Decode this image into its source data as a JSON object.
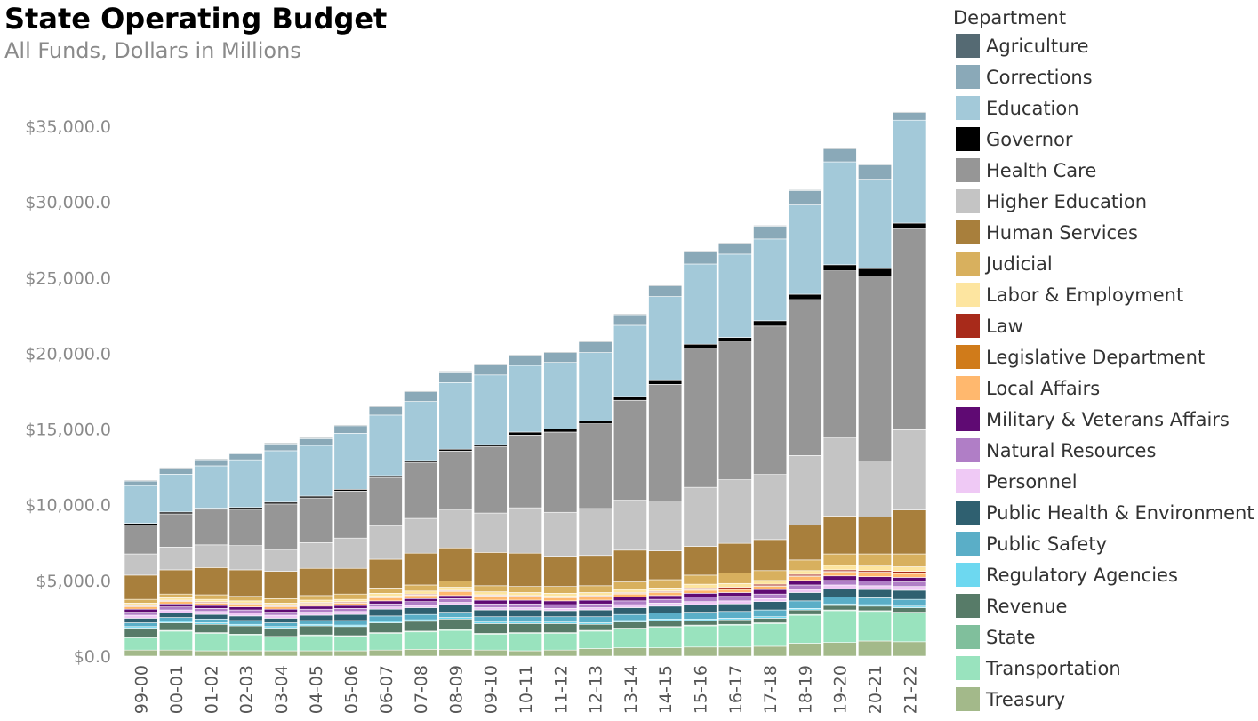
{
  "chart_data": {
    "type": "bar",
    "stacked": true,
    "title": "State Operating Budget",
    "subtitle": "All Funds, Dollars in Millions",
    "xlabel": "",
    "ylabel": "",
    "ylim": [
      0,
      36000
    ],
    "y_ticks": [
      0,
      5000,
      10000,
      15000,
      20000,
      25000,
      30000,
      35000
    ],
    "y_tick_labels": [
      "$0.0",
      "$5,000.0",
      "$10,000.0",
      "$15,000.0",
      "$20,000.0",
      "$25,000.0",
      "$30,000.0",
      "$35,000.0"
    ],
    "grid": false,
    "legend_title": "Department",
    "legend_position": "right",
    "categories": [
      "99-00",
      "00-01",
      "01-02",
      "02-03",
      "03-04",
      "04-05",
      "05-06",
      "06-07",
      "07-08",
      "08-09",
      "09-10",
      "10-11",
      "11-12",
      "12-13",
      "13-14",
      "14-15",
      "15-16",
      "16-17",
      "17-18",
      "18-19",
      "19-20",
      "20-21",
      "21-22"
    ],
    "series": [
      {
        "name": "Treasury",
        "color": "#a3b98a",
        "values": [
          400,
          400,
          350,
          350,
          350,
          350,
          350,
          400,
          450,
          450,
          400,
          350,
          400,
          500,
          550,
          550,
          600,
          600,
          650,
          850,
          900,
          1000,
          950
        ]
      },
      {
        "name": "Transportation",
        "color": "#99e3be",
        "values": [
          800,
          1250,
          1150,
          1050,
          900,
          1000,
          950,
          1100,
          1150,
          1250,
          1050,
          1150,
          1100,
          1150,
          1250,
          1350,
          1400,
          1450,
          1500,
          1850,
          2100,
          1950,
          1900
        ]
      },
      {
        "name": "State",
        "color": "#80bf9c",
        "values": [
          50,
          50,
          50,
          50,
          50,
          50,
          50,
          50,
          50,
          50,
          50,
          50,
          50,
          50,
          50,
          50,
          50,
          50,
          50,
          50,
          50,
          50,
          50
        ]
      },
      {
        "name": "Revenue",
        "color": "#577b68",
        "values": [
          600,
          500,
          550,
          550,
          550,
          600,
          600,
          650,
          650,
          700,
          650,
          600,
          600,
          400,
          400,
          400,
          300,
          300,
          300,
          300,
          300,
          300,
          300
        ]
      },
      {
        "name": "Regulatory Agencies",
        "color": "#6dd8f0",
        "values": [
          100,
          100,
          100,
          100,
          100,
          100,
          100,
          100,
          100,
          100,
          100,
          100,
          100,
          100,
          100,
          100,
          100,
          100,
          100,
          100,
          100,
          100,
          100
        ]
      },
      {
        "name": "Public Safety",
        "color": "#5aaec7",
        "values": [
          250,
          250,
          250,
          250,
          250,
          250,
          300,
          350,
          350,
          350,
          350,
          350,
          350,
          400,
          400,
          400,
          450,
          450,
          450,
          500,
          450,
          450,
          450
        ]
      },
      {
        "name": "Public Health & Environment",
        "color": "#2f6070",
        "values": [
          300,
          300,
          300,
          300,
          300,
          350,
          400,
          450,
          450,
          500,
          450,
          450,
          400,
          450,
          450,
          450,
          500,
          500,
          550,
          550,
          550,
          550,
          600
        ]
      },
      {
        "name": "Personnel",
        "color": "#efc9f5",
        "values": [
          200,
          200,
          200,
          200,
          200,
          200,
          200,
          150,
          150,
          150,
          150,
          150,
          150,
          150,
          200,
          200,
          200,
          200,
          200,
          200,
          250,
          250,
          250
        ]
      },
      {
        "name": "Natural Resources",
        "color": "#b07ec6",
        "values": [
          200,
          200,
          200,
          200,
          200,
          200,
          200,
          200,
          250,
          250,
          250,
          250,
          250,
          250,
          250,
          250,
          300,
          300,
          300,
          300,
          300,
          300,
          300
        ]
      },
      {
        "name": "Military & Veterans Affairs",
        "color": "#5f0a73",
        "values": [
          200,
          200,
          200,
          200,
          200,
          200,
          200,
          200,
          200,
          200,
          250,
          250,
          250,
          250,
          250,
          250,
          250,
          250,
          300,
          300,
          300,
          300,
          300
        ]
      },
      {
        "name": "Local Affairs",
        "color": "#ffb86e",
        "values": [
          150,
          150,
          150,
          150,
          150,
          150,
          150,
          200,
          200,
          250,
          250,
          200,
          200,
          200,
          200,
          200,
          200,
          200,
          200,
          250,
          250,
          250,
          250
        ]
      },
      {
        "name": "Legislative Department",
        "color": "#d07b1a",
        "values": [
          50,
          50,
          50,
          50,
          50,
          50,
          50,
          50,
          50,
          50,
          50,
          50,
          50,
          50,
          50,
          50,
          50,
          50,
          50,
          50,
          50,
          50,
          50
        ]
      },
      {
        "name": "Law",
        "color": "#a82a1a",
        "values": [
          50,
          50,
          50,
          50,
          50,
          50,
          50,
          50,
          50,
          50,
          50,
          50,
          50,
          50,
          50,
          50,
          100,
          100,
          100,
          100,
          100,
          100,
          100
        ]
      },
      {
        "name": "Labor & Employment",
        "color": "#fde5a0",
        "values": [
          150,
          150,
          150,
          150,
          150,
          150,
          150,
          200,
          200,
          200,
          200,
          200,
          200,
          200,
          200,
          200,
          250,
          250,
          250,
          250,
          300,
          300,
          300
        ]
      },
      {
        "name": "Judicial",
        "color": "#d8b05e",
        "values": [
          250,
          250,
          300,
          300,
          300,
          300,
          350,
          350,
          400,
          400,
          400,
          400,
          450,
          450,
          500,
          550,
          600,
          700,
          650,
          700,
          750,
          800,
          850
        ]
      },
      {
        "name": "Human Services",
        "color": "#a87f3c",
        "values": [
          1600,
          1600,
          1800,
          1750,
          1800,
          1800,
          1700,
          1900,
          2100,
          2200,
          2200,
          2200,
          2000,
          2000,
          2100,
          1900,
          1900,
          1950,
          2050,
          2300,
          2500,
          2450,
          2900
        ]
      },
      {
        "name": "Higher Education",
        "color": "#c4c4c4",
        "values": [
          1400,
          1500,
          1500,
          1600,
          1450,
          1700,
          2000,
          2200,
          2300,
          2500,
          2600,
          3000,
          2900,
          3100,
          3300,
          3300,
          3900,
          4200,
          4300,
          4600,
          5200,
          3700,
          5300
        ]
      },
      {
        "name": "Health Care",
        "color": "#969696",
        "values": [
          1900,
          2200,
          2300,
          2400,
          3000,
          2950,
          3100,
          3200,
          3700,
          3900,
          4400,
          4800,
          5300,
          5600,
          6600,
          7700,
          9200,
          9100,
          9800,
          10300,
          11000,
          12200,
          13300
        ]
      },
      {
        "name": "Governor",
        "color": "#000000",
        "values": [
          120,
          120,
          120,
          120,
          120,
          120,
          120,
          120,
          120,
          120,
          120,
          200,
          200,
          200,
          250,
          300,
          250,
          300,
          350,
          350,
          400,
          500,
          350
        ]
      },
      {
        "name": "Education",
        "color": "#a3c9d9",
        "values": [
          2500,
          2500,
          2800,
          3150,
          3400,
          3350,
          3700,
          4000,
          3900,
          4400,
          4600,
          4400,
          4400,
          4500,
          4700,
          5500,
          5300,
          5500,
          5400,
          5900,
          6800,
          5900,
          6800
        ]
      },
      {
        "name": "Corrections",
        "color": "#8aa9b8",
        "values": [
          300,
          400,
          400,
          400,
          450,
          450,
          500,
          550,
          650,
          700,
          700,
          650,
          650,
          700,
          700,
          700,
          800,
          700,
          850,
          950,
          850,
          950,
          500
        ]
      },
      {
        "name": "Agriculture",
        "color": "#556a73",
        "values": [
          50,
          50,
          50,
          50,
          50,
          50,
          50,
          50,
          50,
          50,
          50,
          50,
          50,
          50,
          50,
          50,
          50,
          50,
          50,
          50,
          50,
          50,
          50
        ]
      }
    ]
  }
}
